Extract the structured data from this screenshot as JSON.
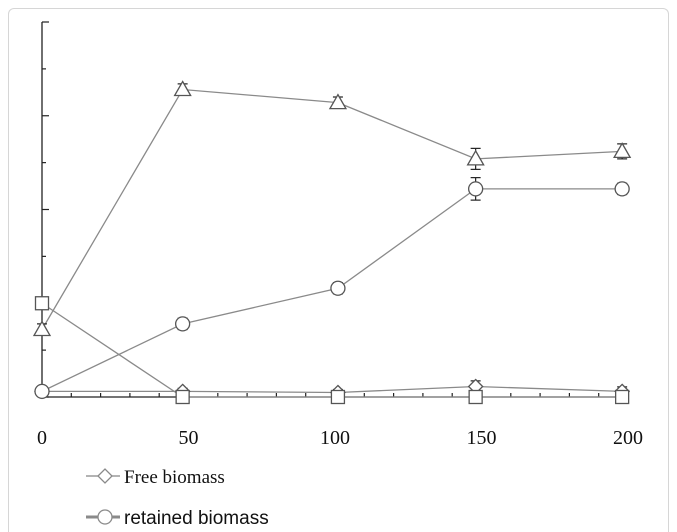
{
  "chart_data": {
    "type": "line",
    "title": "",
    "xlabel": "",
    "ylabel": "",
    "xlim": [
      0,
      200
    ],
    "ylim": [
      0,
      100
    ],
    "x_ticks": [
      0,
      50,
      100,
      150,
      200
    ],
    "grid": false,
    "legend_position": "bottom-left",
    "series": [
      {
        "name": "Free biomass",
        "marker": "diamond",
        "x": [
          0,
          48,
          101,
          148,
          198
        ],
        "y": [
          1.5,
          1.5,
          1.2,
          2.8,
          1.5
        ],
        "err": [
          0.8,
          0.8,
          0.8,
          1.5,
          1.2
        ]
      },
      {
        "name": "retained biomass",
        "marker": "circle",
        "x": [
          0,
          48,
          101,
          148,
          198
        ],
        "y": [
          1.5,
          19.5,
          29,
          55.5,
          55.5
        ],
        "err": [
          0.8,
          1.5,
          1.5,
          3,
          1.5
        ]
      },
      {
        "marker": "triangle",
        "x": [
          0,
          48,
          101,
          148,
          198
        ],
        "y": [
          18,
          82,
          78.5,
          63.5,
          65.5
        ],
        "err": [
          1.5,
          1.5,
          1.5,
          2.8,
          2
        ]
      },
      {
        "marker": "square",
        "x": [
          0,
          48,
          101,
          148,
          198
        ],
        "y": [
          25,
          0,
          0,
          0,
          0
        ],
        "err": [
          1.5,
          0.8,
          0.8,
          0.8,
          0.8
        ]
      }
    ]
  },
  "legend": {
    "free_label": "Free biomass",
    "retained_label": "retained biomass"
  }
}
